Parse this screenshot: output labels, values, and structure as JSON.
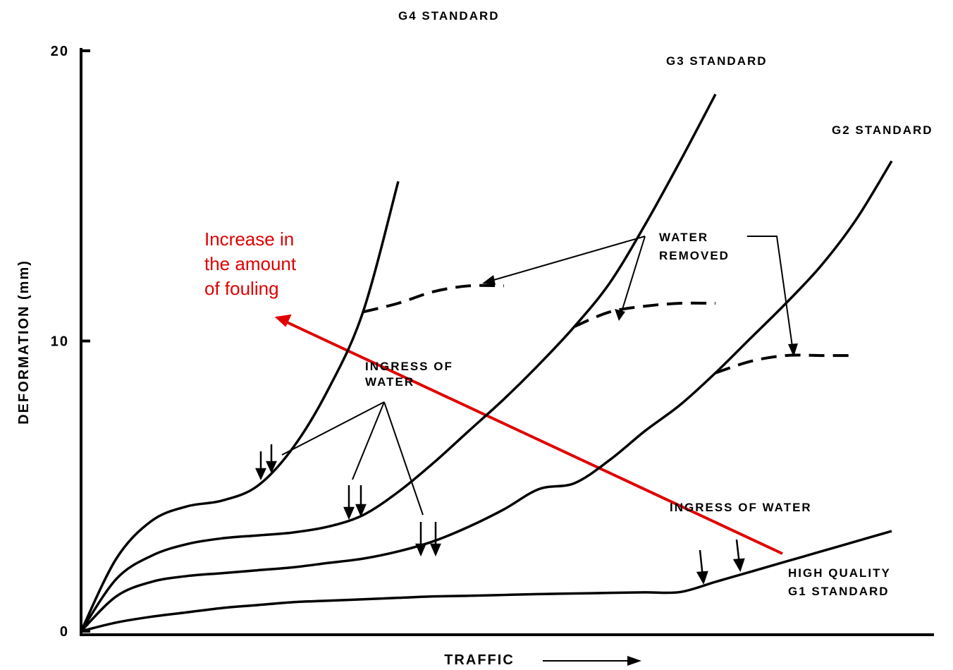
{
  "chart_data": {
    "type": "line",
    "x_label": "TRAFFIC",
    "y_label": "DEFORMATION (mm)",
    "ylim": [
      0,
      20
    ],
    "yticks": [
      0,
      10,
      20
    ],
    "categories": [
      null,
      null,
      null,
      null,
      null,
      null,
      null,
      null,
      null,
      null,
      null,
      null,
      null,
      null,
      null,
      null,
      null,
      null,
      null,
      null,
      null,
      null,
      null,
      null,
      null
    ],
    "series": [
      {
        "name": "G4 STANDARD",
        "color": "#000000",
        "values": [
          0,
          2.5,
          3.8,
          4.3,
          4.5,
          5.0,
          6.3,
          8.3,
          11.0,
          15.5,
          null,
          null,
          null,
          null,
          null,
          null,
          null,
          null,
          null,
          null,
          null,
          null,
          null,
          null,
          null
        ]
      },
      {
        "name": "G3 STANDARD",
        "color": "#000000",
        "values": [
          0,
          1.8,
          2.6,
          3.0,
          3.2,
          3.3,
          3.4,
          3.6,
          4.0,
          4.8,
          5.8,
          6.9,
          8.0,
          9.2,
          10.5,
          12.0,
          14.0,
          16.2,
          18.5,
          null,
          null,
          null,
          null,
          null,
          null
        ]
      },
      {
        "name": "G2 STANDARD",
        "color": "#000000",
        "values": [
          0,
          1.2,
          1.7,
          1.9,
          2.0,
          2.1,
          2.2,
          2.35,
          2.5,
          2.75,
          3.1,
          3.6,
          4.2,
          4.9,
          5.1,
          5.9,
          6.9,
          7.8,
          8.9,
          10.1,
          11.3,
          12.6,
          14.2,
          16.2,
          null
        ]
      },
      {
        "name": "HIGH QUALITY G1 STANDARD",
        "color": "#000000",
        "values": [
          0,
          0.3,
          0.5,
          0.65,
          0.8,
          0.9,
          1.0,
          1.05,
          1.1,
          1.15,
          1.2,
          1.22,
          1.25,
          1.28,
          1.3,
          1.32,
          1.34,
          1.35,
          1.7,
          2.05,
          2.4,
          2.75,
          3.1,
          3.45,
          null
        ]
      },
      {
        "color": "#000000",
        "dashed": true,
        "values": [
          null,
          null,
          null,
          null,
          null,
          null,
          null,
          null,
          11.0,
          11.3,
          11.7,
          11.9,
          11.9,
          null,
          null,
          null,
          null,
          null,
          null,
          null,
          null,
          null,
          null,
          null,
          null
        ]
      },
      {
        "color": "#000000",
        "dashed": true,
        "values": [
          null,
          null,
          null,
          null,
          null,
          null,
          null,
          null,
          null,
          null,
          null,
          null,
          null,
          null,
          10.5,
          11.0,
          11.2,
          11.3,
          11.3,
          null,
          null,
          null,
          null,
          null,
          null
        ]
      },
      {
        "color": "#000000",
        "dashed": true,
        "values": [
          null,
          null,
          null,
          null,
          null,
          null,
          null,
          null,
          null,
          null,
          null,
          null,
          null,
          null,
          null,
          null,
          null,
          null,
          8.9,
          9.3,
          9.5,
          9.5,
          9.5,
          null,
          null
        ]
      }
    ],
    "annotations": [
      {
        "lines": [
          "WATER",
          "REMOVED"
        ]
      },
      {
        "lines": [
          "INGRESS OF",
          "WATER"
        ]
      },
      {
        "lines": [
          "INGRESS OF WATER"
        ]
      },
      {
        "lines": [
          "Increase in",
          "the amount",
          "of fouling"
        ],
        "color": "#e00000"
      }
    ]
  }
}
